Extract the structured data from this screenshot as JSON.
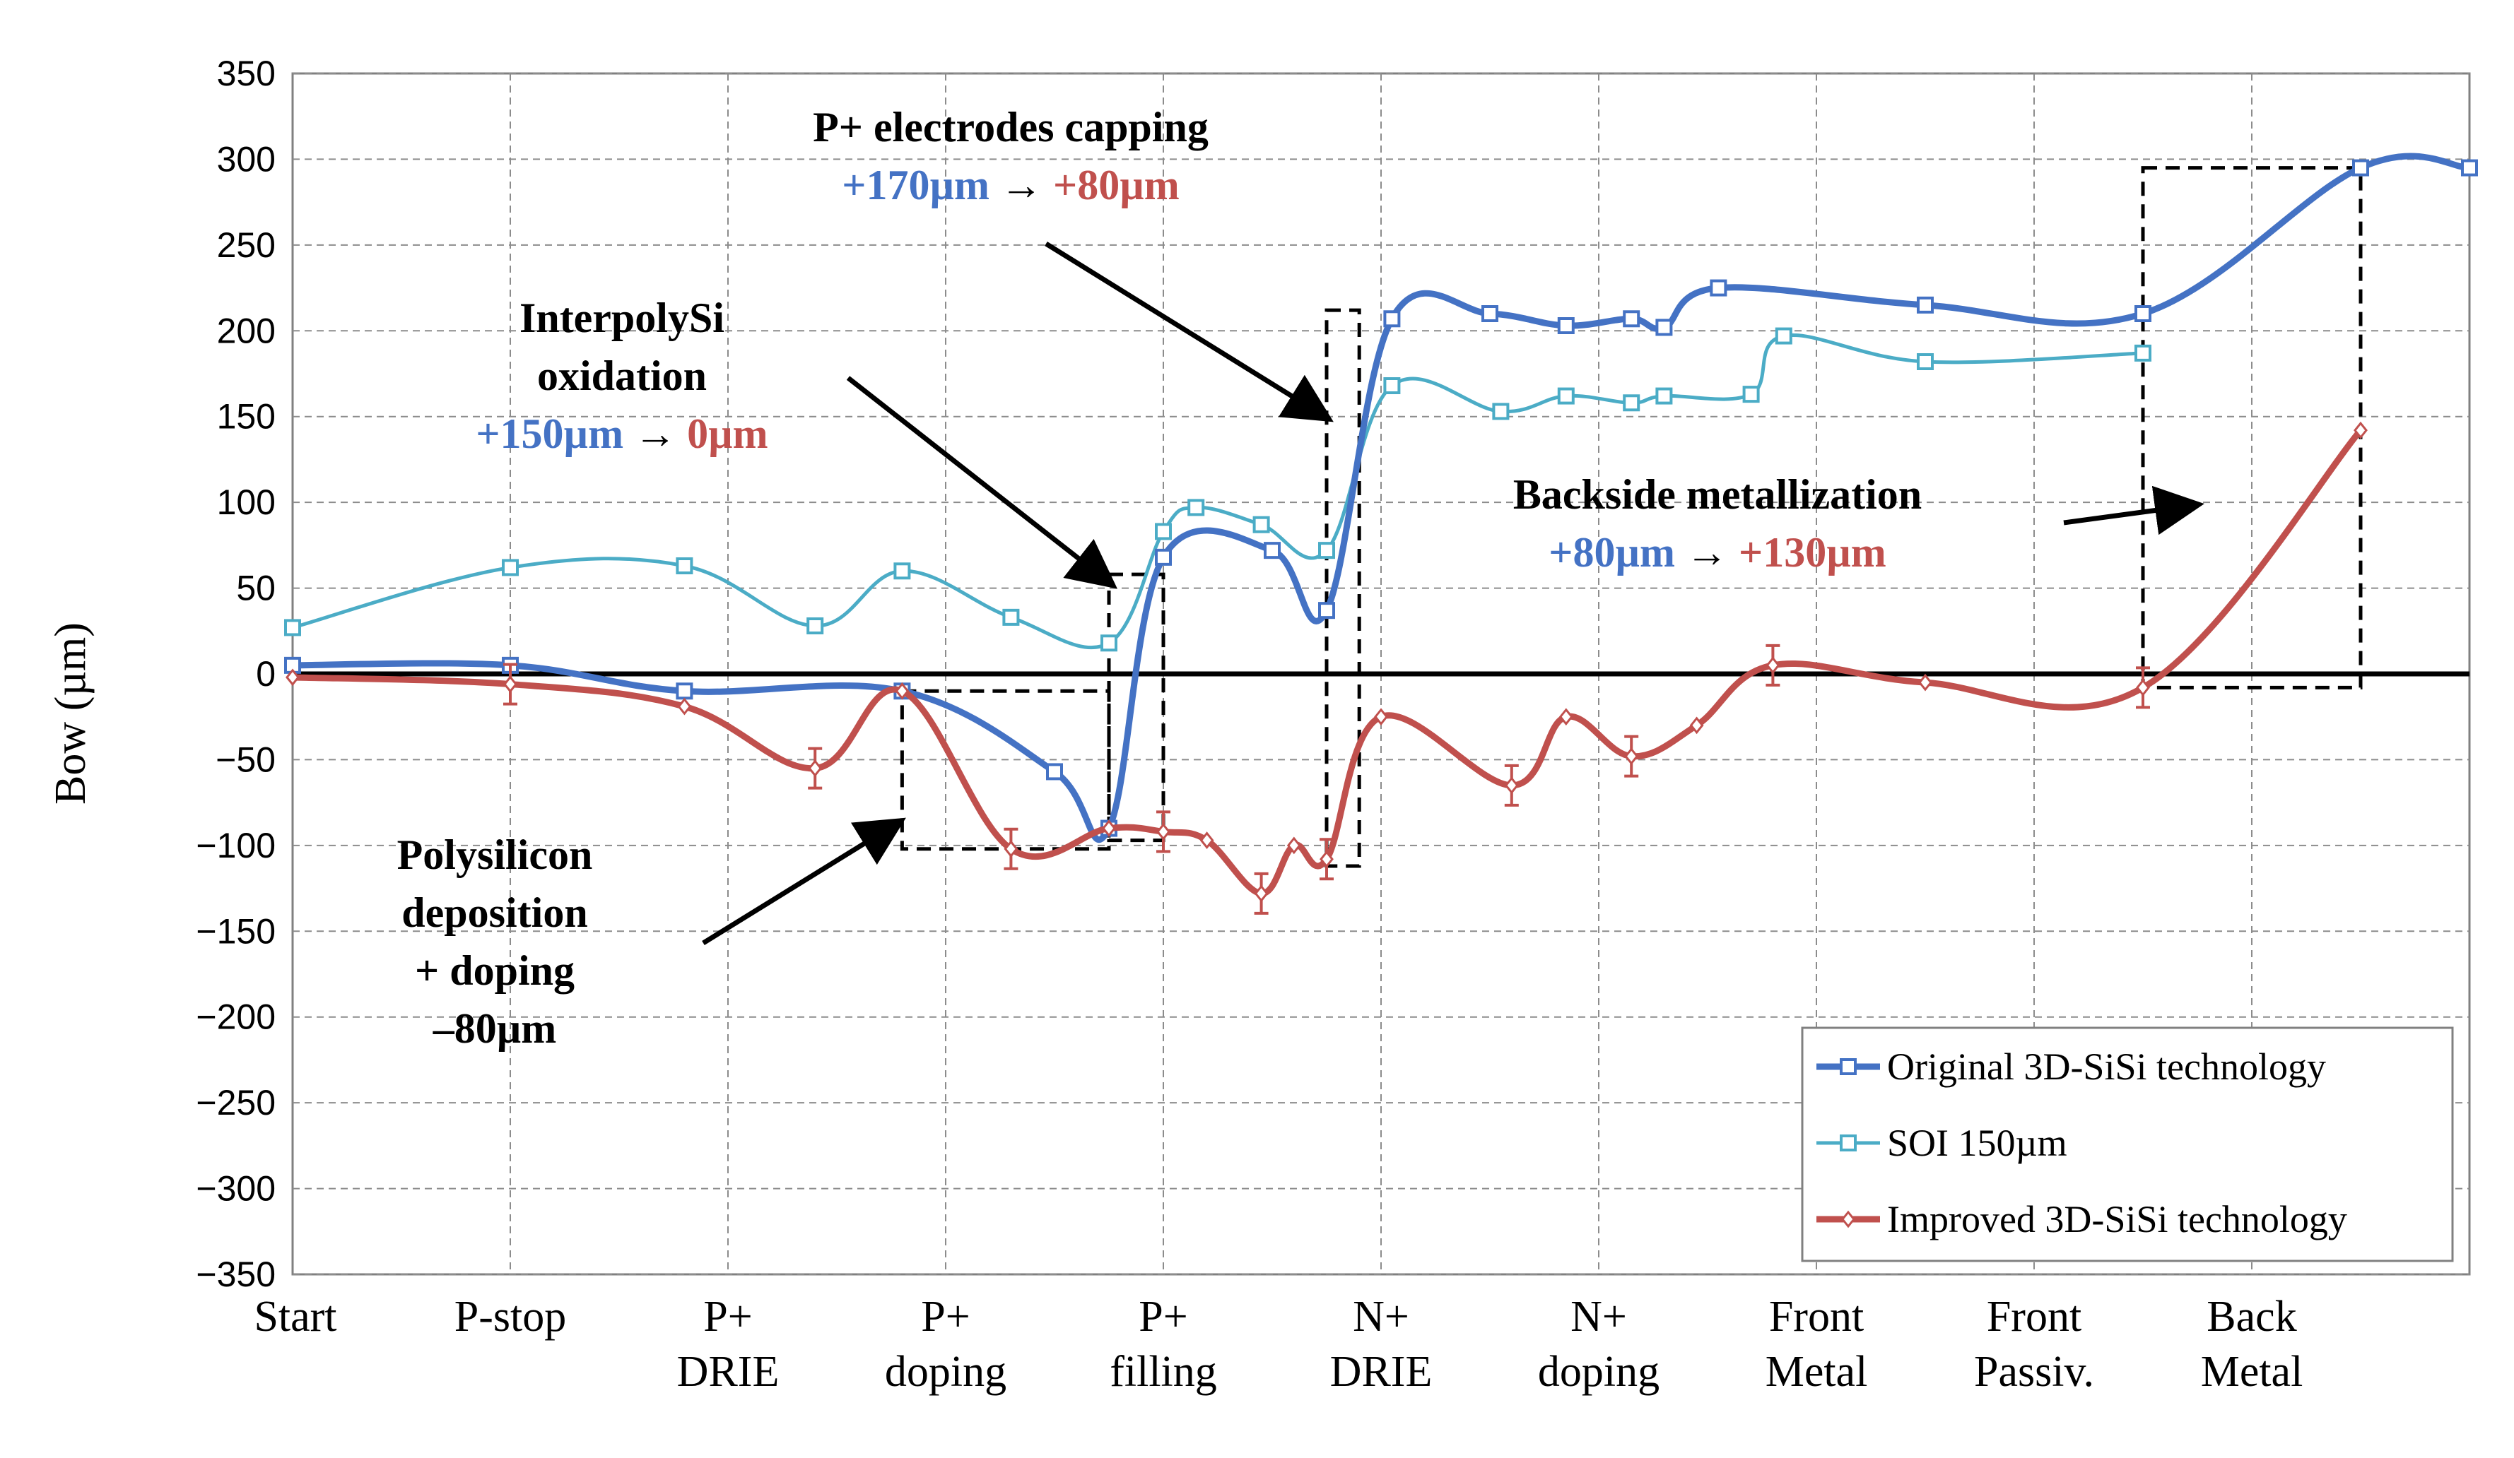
{
  "chart_data": {
    "type": "line",
    "title": "",
    "xlabel": "",
    "ylabel": "Bow (µm)",
    "ylim": [
      -350,
      350
    ],
    "ytick_step": 50,
    "grid": true,
    "legend_position": "bottom-right",
    "categories": [
      [
        "Start"
      ],
      [
        "P-stop"
      ],
      [
        "P+",
        "DRIE"
      ],
      [
        "P+",
        "doping"
      ],
      [
        "P+",
        "filling"
      ],
      [
        "N+",
        "DRIE"
      ],
      [
        "N+",
        "doping"
      ],
      [
        "Front",
        "Metal"
      ],
      [
        "Front",
        "Passiv."
      ],
      [
        "Back",
        "Metal"
      ]
    ],
    "series": [
      {
        "name": "Original 3D-SiSi technology",
        "color": "#4472C4",
        "marker": "square",
        "x": [
          0,
          1,
          1.8,
          2.8,
          3.5,
          3.75,
          4.0,
          4.5,
          4.75,
          5.05,
          5.5,
          5.85,
          6.15,
          6.3,
          6.55,
          7.5,
          8.5,
          9.5,
          10.0
        ],
        "values": [
          5,
          5,
          -10,
          -10,
          -57,
          -90,
          68,
          72,
          37,
          207,
          210,
          203,
          207,
          202,
          225,
          215,
          210,
          295,
          295
        ]
      },
      {
        "name": "SOI 150µm",
        "color": "#4BACC6",
        "marker": "square",
        "x": [
          0,
          1,
          1.8,
          2.4,
          2.8,
          3.3,
          3.75,
          4.0,
          4.15,
          4.45,
          4.75,
          5.05,
          5.55,
          5.85,
          6.15,
          6.3,
          6.7,
          6.85,
          7.5,
          8.5
        ],
        "values": [
          27,
          62,
          63,
          28,
          60,
          33,
          18,
          83,
          97,
          87,
          72,
          168,
          153,
          162,
          158,
          162,
          163,
          197,
          182,
          187
        ]
      },
      {
        "name": "Improved 3D-SiSi technology",
        "color": "#C0504D",
        "marker": "diamond",
        "x": [
          0,
          1,
          1.8,
          2.4,
          2.8,
          3.3,
          3.75,
          4.0,
          4.2,
          4.45,
          4.6,
          4.75,
          5.0,
          5.6,
          5.85,
          6.15,
          6.45,
          6.8,
          7.5,
          8.5,
          9.5
        ],
        "values": [
          -2,
          -6,
          -19,
          -55,
          -10,
          -102,
          -90,
          -92,
          -97,
          -128,
          -100,
          -108,
          -25,
          -65,
          -25,
          -48,
          -30,
          5,
          -5,
          -8,
          142
        ]
      }
    ],
    "annotations": [
      {
        "lines": [
          [
            "InterpolySi",
            "black"
          ],
          [
            "oxidation",
            "black"
          ]
        ],
        "value_line": [
          [
            "+150µm",
            "blue"
          ],
          [
            " → ",
            "black"
          ],
          [
            "0µm",
            "red"
          ]
        ]
      },
      {
        "lines": [
          [
            "P+ electrodes capping",
            "black"
          ]
        ],
        "value_line": [
          [
            "+170µm",
            "blue"
          ],
          [
            " → ",
            "black"
          ],
          [
            "+80µm",
            "red"
          ]
        ]
      },
      {
        "lines": [
          [
            "Backside metallization",
            "black"
          ]
        ],
        "value_line": [
          [
            "+80µm",
            "blue"
          ],
          [
            " → ",
            "black"
          ],
          [
            "+130µm",
            "red"
          ]
        ]
      },
      {
        "lines": [
          [
            "Polysilicon",
            "black"
          ],
          [
            "deposition",
            "black"
          ],
          [
            "+ doping",
            "black"
          ],
          [
            "–80µm",
            "black"
          ]
        ],
        "value_line": []
      }
    ]
  }
}
